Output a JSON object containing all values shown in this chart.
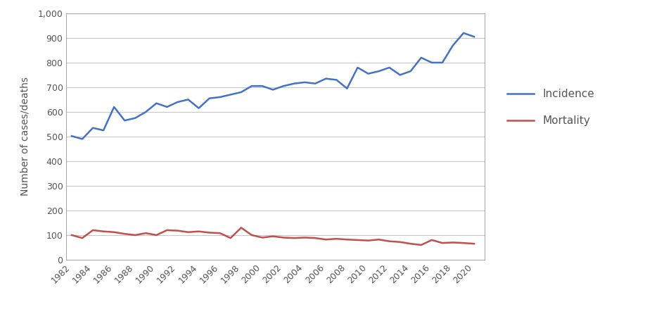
{
  "years": [
    1982,
    1983,
    1984,
    1985,
    1986,
    1987,
    1988,
    1989,
    1990,
    1991,
    1992,
    1993,
    1994,
    1995,
    1996,
    1997,
    1998,
    1999,
    2000,
    2001,
    2002,
    2003,
    2004,
    2005,
    2006,
    2007,
    2008,
    2009,
    2010,
    2011,
    2012,
    2013,
    2014,
    2015,
    2016,
    2017,
    2018,
    2019,
    2020
  ],
  "incidence": [
    502,
    490,
    535,
    525,
    620,
    565,
    575,
    600,
    635,
    620,
    640,
    650,
    615,
    655,
    660,
    670,
    680,
    705,
    705,
    690,
    705,
    715,
    720,
    715,
    735,
    730,
    695,
    780,
    755,
    765,
    780,
    750,
    765,
    820,
    800,
    800,
    870,
    920,
    905
  ],
  "mortality": [
    100,
    88,
    120,
    115,
    112,
    105,
    100,
    108,
    100,
    120,
    118,
    112,
    115,
    110,
    108,
    88,
    130,
    100,
    90,
    95,
    90,
    88,
    90,
    88,
    82,
    85,
    82,
    80,
    78,
    82,
    75,
    72,
    65,
    60,
    80,
    68,
    70,
    68,
    65
  ],
  "incidence_color": "#4472C4",
  "mortality_color": "#C0504D",
  "ylabel": "Number of cases/deaths",
  "ylim": [
    0,
    1000
  ],
  "yticks": [
    0,
    100,
    200,
    300,
    400,
    500,
    600,
    700,
    800,
    900,
    1000
  ],
  "xtick_labels": [
    "1982",
    "1984",
    "1986",
    "1988",
    "1990",
    "1992",
    "1994",
    "1996",
    "1998",
    "2000",
    "2002",
    "2004",
    "2006",
    "2008",
    "2010",
    "2012",
    "2014",
    "2016",
    "2018",
    "2020"
  ],
  "legend_incidence": "Incidence",
  "legend_mortality": "Mortality",
  "line_width": 1.8,
  "background_color": "#ffffff",
  "grid_color": "#c8c8c8",
  "border_color": "#aaaaaa",
  "tick_label_color": "#555555",
  "ylabel_color": "#555555"
}
